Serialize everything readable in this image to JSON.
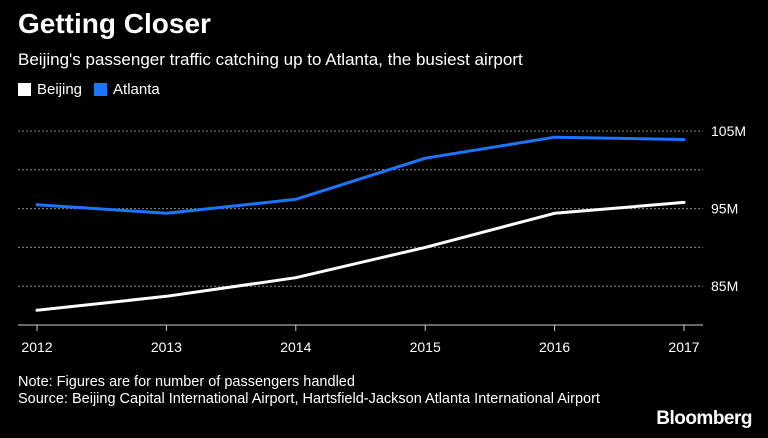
{
  "title": "Getting Closer",
  "subtitle": "Beijing's passenger traffic catching up to Atlanta, the busiest airport",
  "legend": [
    {
      "name": "Beijing",
      "color": "#ffffff"
    },
    {
      "name": "Atlanta",
      "color": "#1a75ff"
    }
  ],
  "notes": {
    "note": "Note: Figures are for number of passengers handled",
    "source": "Source: Beijing Capital International Airport, Hartsfield-Jackson Atlanta International Airport"
  },
  "brand": "Bloomberg",
  "chart_data": {
    "type": "line",
    "title": "Getting Closer",
    "x": [
      "2012",
      "2013",
      "2014",
      "2015",
      "2016",
      "2017"
    ],
    "series": [
      {
        "name": "Beijing",
        "color": "#ffffff",
        "values": [
          81.9,
          83.7,
          86.1,
          90.0,
          94.4,
          95.8
        ]
      },
      {
        "name": "Atlanta",
        "color": "#1a75ff",
        "values": [
          95.5,
          94.4,
          96.2,
          101.5,
          104.2,
          103.9
        ]
      }
    ],
    "ylim": [
      80,
      105
    ],
    "yticks": [
      85,
      95,
      105
    ],
    "ytick_labels": [
      "85M",
      "95M",
      "105M"
    ],
    "grid_values": [
      85,
      90,
      95,
      100,
      105
    ],
    "grid": true,
    "xlabel": "",
    "ylabel": ""
  }
}
